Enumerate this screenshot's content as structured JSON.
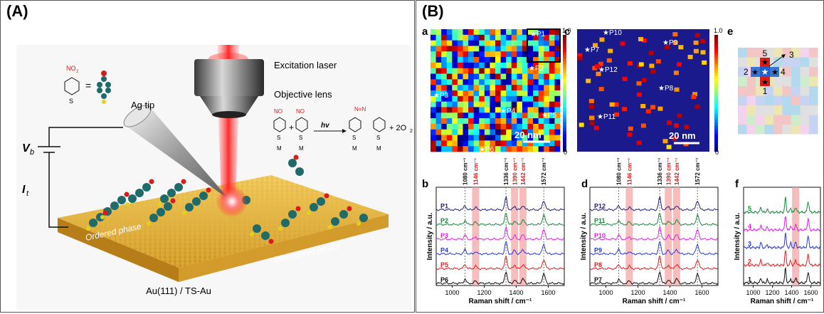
{
  "panel_a": {
    "label": "(A)",
    "excitation_label": "Excitation laser",
    "objective_label": "Objective lens",
    "tip_label": "Ag tip",
    "vb_label": "V",
    "vb_sub": "b",
    "it_label": "I",
    "it_sub": "t",
    "ordered_label": "Ordered phase",
    "disordered_label": "Disordered phase",
    "substrate_label": "Au(111) / TS-Au",
    "no2_label": "NO",
    "no2_sub": "2",
    "s_label": "S",
    "m_label": "M",
    "hv_label": "hv",
    "o2_label": "+ 2O",
    "o2_sub": "2",
    "plus_label": "+",
    "nn_label": "N=N",
    "equals_label": "="
  },
  "panel_b": {
    "label": "(B)",
    "sub_a": "a",
    "sub_b": "b",
    "sub_c": "c",
    "sub_d": "d",
    "sub_e": "e",
    "sub_f": "f",
    "scale_a": "20 nm",
    "scale_c": "20 nm",
    "cbar_max": "1.0",
    "cbar_min": "0",
    "map_a_points": [
      "P1",
      "P2",
      "P3",
      "P4",
      "P5",
      "P6"
    ],
    "map_c_points": [
      "P10",
      "P9",
      "P7",
      "P12",
      "P8",
      "P11"
    ],
    "map_e_labels": [
      "5",
      "3",
      "2",
      "4",
      "1"
    ],
    "peaks_black": [
      "1080 cm⁻¹",
      "1336 cm⁻¹",
      "1572 cm⁻¹"
    ],
    "peaks_red": [
      "1146 cm⁻¹",
      "1390 cm⁻¹",
      "1442 cm⁻¹"
    ],
    "ylabel": "Intensity / a.u.",
    "xlabel": "Raman shift / cm⁻¹",
    "xticks": [
      "1000",
      "1200",
      "1400",
      "1600"
    ],
    "spectra_b": [
      {
        "name": "P1",
        "color": "#1f1f7a"
      },
      {
        "name": "P2",
        "color": "#1a8a3a"
      },
      {
        "name": "P3",
        "color": "#e020e0"
      },
      {
        "name": "P4",
        "color": "#2a3ad0"
      },
      {
        "name": "P5",
        "color": "#e02020"
      },
      {
        "name": "P6",
        "color": "#111111"
      }
    ],
    "spectra_d": [
      {
        "name": "P12",
        "color": "#1f1f7a"
      },
      {
        "name": "P11",
        "color": "#1a8a3a"
      },
      {
        "name": "P10",
        "color": "#e020e0"
      },
      {
        "name": "P9",
        "color": "#2a3ad0"
      },
      {
        "name": "P8",
        "color": "#e02020"
      },
      {
        "name": "P7",
        "color": "#111111"
      }
    ],
    "spectra_f": [
      {
        "name": "5",
        "color": "#1a8a3a"
      },
      {
        "name": "4",
        "color": "#e020e0"
      },
      {
        "name": "3",
        "color": "#2a3ad0"
      },
      {
        "name": "2",
        "color": "#e02020"
      },
      {
        "name": "1",
        "color": "#111111"
      }
    ]
  }
}
